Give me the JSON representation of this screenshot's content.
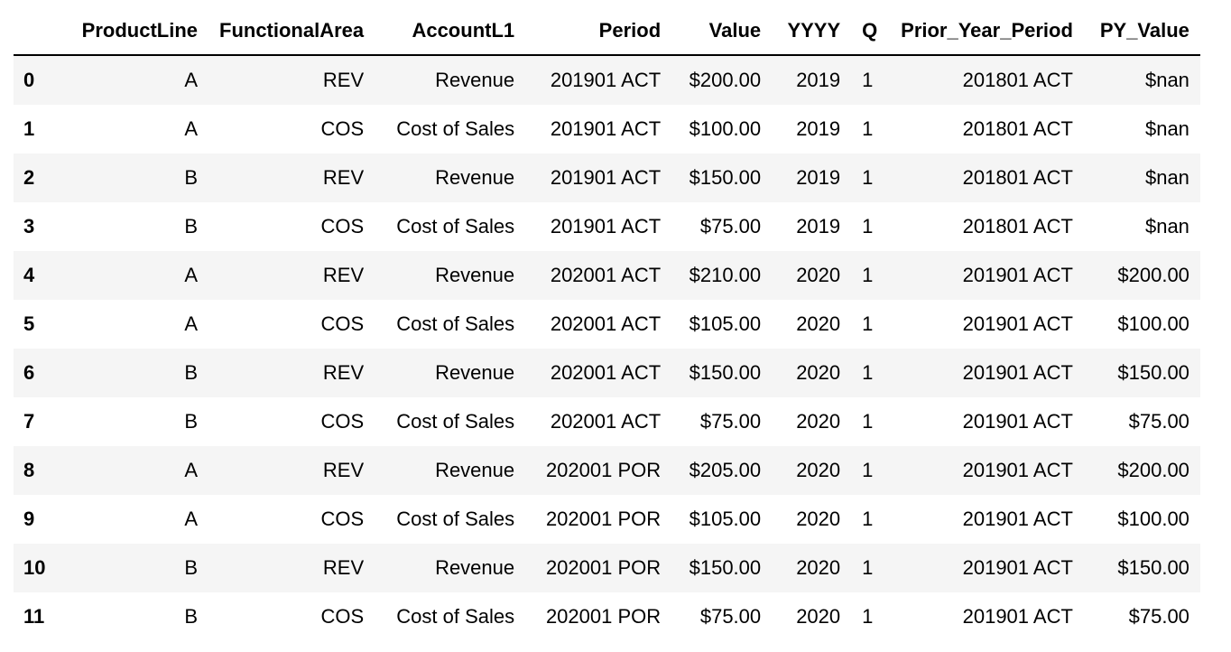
{
  "table": {
    "index_header": "",
    "columns": [
      "ProductLine",
      "FunctionalArea",
      "AccountL1",
      "Period",
      "Value",
      "YYYY",
      "Q",
      "Prior_Year_Period",
      "PY_Value"
    ],
    "rows": [
      {
        "index": "0",
        "cells": [
          "A",
          "REV",
          "Revenue",
          "201901 ACT",
          "$200.00",
          "2019",
          "1",
          "201801 ACT",
          "$nan"
        ]
      },
      {
        "index": "1",
        "cells": [
          "A",
          "COS",
          "Cost of Sales",
          "201901 ACT",
          "$100.00",
          "2019",
          "1",
          "201801 ACT",
          "$nan"
        ]
      },
      {
        "index": "2",
        "cells": [
          "B",
          "REV",
          "Revenue",
          "201901 ACT",
          "$150.00",
          "2019",
          "1",
          "201801 ACT",
          "$nan"
        ]
      },
      {
        "index": "3",
        "cells": [
          "B",
          "COS",
          "Cost of Sales",
          "201901 ACT",
          "$75.00",
          "2019",
          "1",
          "201801 ACT",
          "$nan"
        ]
      },
      {
        "index": "4",
        "cells": [
          "A",
          "REV",
          "Revenue",
          "202001 ACT",
          "$210.00",
          "2020",
          "1",
          "201901 ACT",
          "$200.00"
        ]
      },
      {
        "index": "5",
        "cells": [
          "A",
          "COS",
          "Cost of Sales",
          "202001 ACT",
          "$105.00",
          "2020",
          "1",
          "201901 ACT",
          "$100.00"
        ]
      },
      {
        "index": "6",
        "cells": [
          "B",
          "REV",
          "Revenue",
          "202001 ACT",
          "$150.00",
          "2020",
          "1",
          "201901 ACT",
          "$150.00"
        ]
      },
      {
        "index": "7",
        "cells": [
          "B",
          "COS",
          "Cost of Sales",
          "202001 ACT",
          "$75.00",
          "2020",
          "1",
          "201901 ACT",
          "$75.00"
        ]
      },
      {
        "index": "8",
        "cells": [
          "A",
          "REV",
          "Revenue",
          "202001 POR",
          "$205.00",
          "2020",
          "1",
          "201901 ACT",
          "$200.00"
        ]
      },
      {
        "index": "9",
        "cells": [
          "A",
          "COS",
          "Cost of Sales",
          "202001 POR",
          "$105.00",
          "2020",
          "1",
          "201901 ACT",
          "$100.00"
        ]
      },
      {
        "index": "10",
        "cells": [
          "B",
          "REV",
          "Revenue",
          "202001 POR",
          "$150.00",
          "2020",
          "1",
          "201901 ACT",
          "$150.00"
        ]
      },
      {
        "index": "11",
        "cells": [
          "B",
          "COS",
          "Cost of Sales",
          "202001 POR",
          "$75.00",
          "2020",
          "1",
          "201901 ACT",
          "$75.00"
        ]
      }
    ]
  },
  "colors": {
    "stripe": "#f5f5f5",
    "background": "#ffffff",
    "header_rule": "#000000"
  }
}
